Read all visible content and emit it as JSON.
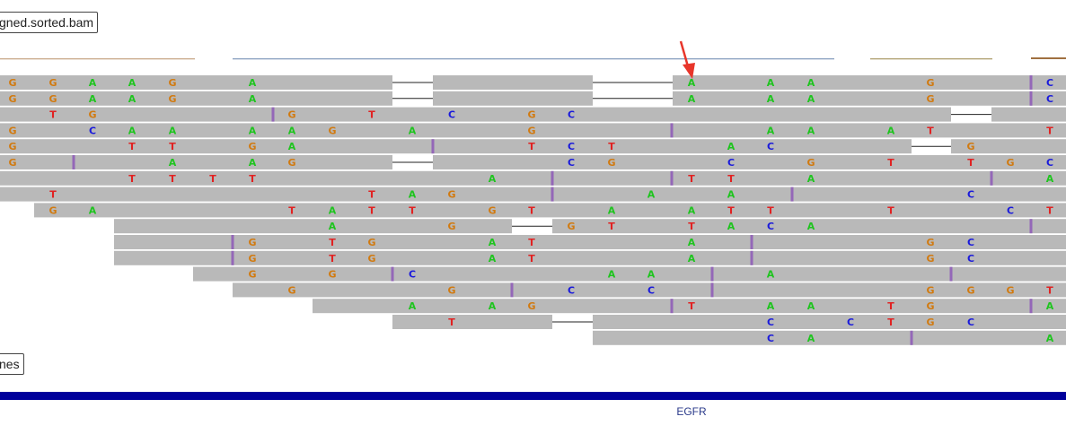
{
  "tracks": {
    "alignment_label": "gned.sorted.bam",
    "gene_track_label": "nes"
  },
  "gene": {
    "name": "EGFR"
  },
  "colors": {
    "read": "#b9b9b9",
    "insertion": "#9467b8",
    "A": "#1fc41f",
    "C": "#1a1adb",
    "G": "#d17a10",
    "T": "#e02222",
    "arrow": "#e8352a",
    "gene": "#00009b"
  },
  "reads": [
    {
      "segments": [
        [
          0,
          437
        ],
        [
          482,
          660
        ],
        [
          749,
          1187
        ]
      ],
      "bases": [
        [
          14,
          "G"
        ],
        [
          59,
          "G"
        ],
        [
          103,
          "A"
        ],
        [
          147,
          "A"
        ],
        [
          192,
          "G"
        ],
        [
          281,
          "A"
        ],
        [
          770,
          "A"
        ],
        [
          858,
          "A"
        ],
        [
          903,
          "A"
        ],
        [
          1036,
          "G"
        ],
        [
          1169,
          "C"
        ]
      ],
      "ins": [
        1148
      ]
    },
    {
      "segments": [
        [
          0,
          437
        ],
        [
          482,
          660
        ],
        [
          749,
          1187
        ]
      ],
      "bases": [
        [
          14,
          "G"
        ],
        [
          59,
          "G"
        ],
        [
          103,
          "A"
        ],
        [
          147,
          "A"
        ],
        [
          192,
          "G"
        ],
        [
          281,
          "A"
        ],
        [
          770,
          "A"
        ],
        [
          858,
          "A"
        ],
        [
          903,
          "A"
        ],
        [
          1036,
          "G"
        ],
        [
          1169,
          "C"
        ]
      ],
      "ins": [
        1148
      ]
    },
    {
      "segments": [
        [
          0,
          1059
        ],
        [
          1104,
          1187
        ]
      ],
      "bases": [
        [
          59,
          "T"
        ],
        [
          103,
          "G"
        ],
        [
          325,
          "G"
        ],
        [
          414,
          "T"
        ],
        [
          503,
          "C"
        ],
        [
          592,
          "G"
        ],
        [
          636,
          "C"
        ]
      ],
      "ins": [
        304
      ]
    },
    {
      "segments": [
        [
          0,
          1187
        ]
      ],
      "bases": [
        [
          14,
          "G"
        ],
        [
          103,
          "C"
        ],
        [
          147,
          "A"
        ],
        [
          192,
          "A"
        ],
        [
          281,
          "A"
        ],
        [
          325,
          "A"
        ],
        [
          370,
          "G"
        ],
        [
          459,
          "A"
        ],
        [
          592,
          "G"
        ],
        [
          858,
          "A"
        ],
        [
          903,
          "A"
        ],
        [
          992,
          "A"
        ],
        [
          1036,
          "T"
        ],
        [
          1169,
          "T"
        ]
      ],
      "ins": [
        748
      ]
    },
    {
      "segments": [
        [
          0,
          1015
        ],
        [
          1059,
          1187
        ]
      ],
      "bases": [
        [
          14,
          "G"
        ],
        [
          147,
          "T"
        ],
        [
          192,
          "T"
        ],
        [
          281,
          "G"
        ],
        [
          325,
          "A"
        ],
        [
          592,
          "T"
        ],
        [
          636,
          "C"
        ],
        [
          681,
          "T"
        ],
        [
          814,
          "A"
        ],
        [
          858,
          "C"
        ],
        [
          1081,
          "G"
        ]
      ],
      "ins": [
        482
      ]
    },
    {
      "segments": [
        [
          0,
          437
        ],
        [
          482,
          1187
        ]
      ],
      "bases": [
        [
          14,
          "G"
        ],
        [
          192,
          "A"
        ],
        [
          281,
          "A"
        ],
        [
          325,
          "G"
        ],
        [
          636,
          "C"
        ],
        [
          681,
          "G"
        ],
        [
          814,
          "C"
        ],
        [
          903,
          "G"
        ],
        [
          992,
          "T"
        ],
        [
          1081,
          "T"
        ],
        [
          1125,
          "G"
        ],
        [
          1169,
          "C"
        ]
      ],
      "ins": [
        82
      ]
    },
    {
      "segments": [
        [
          0,
          1187
        ]
      ],
      "bases": [
        [
          147,
          "T"
        ],
        [
          192,
          "T"
        ],
        [
          237,
          "T"
        ],
        [
          281,
          "T"
        ],
        [
          548,
          "A"
        ],
        [
          770,
          "T"
        ],
        [
          814,
          "T"
        ],
        [
          903,
          "A"
        ],
        [
          1169,
          "A"
        ]
      ],
      "ins": [
        615,
        748,
        1104
      ]
    },
    {
      "segments": [
        [
          0,
          1187
        ]
      ],
      "bases": [
        [
          59,
          "T"
        ],
        [
          414,
          "T"
        ],
        [
          459,
          "A"
        ],
        [
          503,
          "G"
        ],
        [
          725,
          "A"
        ],
        [
          814,
          "A"
        ],
        [
          1081,
          "C"
        ]
      ],
      "ins": [
        615,
        882
      ]
    },
    {
      "segments": [
        [
          38,
          1187
        ]
      ],
      "bases": [
        [
          59,
          "G"
        ],
        [
          103,
          "A"
        ],
        [
          325,
          "T"
        ],
        [
          370,
          "A"
        ],
        [
          414,
          "T"
        ],
        [
          459,
          "T"
        ],
        [
          548,
          "G"
        ],
        [
          592,
          "T"
        ],
        [
          681,
          "A"
        ],
        [
          770,
          "A"
        ],
        [
          814,
          "T"
        ],
        [
          858,
          "T"
        ],
        [
          992,
          "T"
        ],
        [
          1125,
          "C"
        ],
        [
          1169,
          "T"
        ]
      ],
      "ins": []
    },
    {
      "segments": [
        [
          127,
          570
        ],
        [
          615,
          1187
        ]
      ],
      "bases": [
        [
          370,
          "A"
        ],
        [
          503,
          "G"
        ],
        [
          636,
          "G"
        ],
        [
          681,
          "T"
        ],
        [
          770,
          "T"
        ],
        [
          814,
          "A"
        ],
        [
          858,
          "C"
        ],
        [
          903,
          "A"
        ]
      ],
      "ins": [
        1148
      ]
    },
    {
      "segments": [
        [
          127,
          1187
        ]
      ],
      "bases": [
        [
          281,
          "G"
        ],
        [
          370,
          "T"
        ],
        [
          414,
          "G"
        ],
        [
          548,
          "A"
        ],
        [
          592,
          "T"
        ],
        [
          770,
          "A"
        ],
        [
          1036,
          "G"
        ],
        [
          1081,
          "C"
        ]
      ],
      "ins": [
        259,
        837
      ]
    },
    {
      "segments": [
        [
          127,
          1187
        ]
      ],
      "bases": [
        [
          281,
          "G"
        ],
        [
          370,
          "T"
        ],
        [
          414,
          "G"
        ],
        [
          548,
          "A"
        ],
        [
          592,
          "T"
        ],
        [
          770,
          "A"
        ],
        [
          1036,
          "G"
        ],
        [
          1081,
          "C"
        ]
      ],
      "ins": [
        259,
        837
      ]
    },
    {
      "segments": [
        [
          215,
          1187
        ]
      ],
      "bases": [
        [
          281,
          "G"
        ],
        [
          370,
          "G"
        ],
        [
          459,
          "C"
        ],
        [
          681,
          "A"
        ],
        [
          725,
          "A"
        ],
        [
          858,
          "A"
        ]
      ],
      "ins": [
        437,
        793,
        1059
      ]
    },
    {
      "segments": [
        [
          259,
          1187
        ]
      ],
      "bases": [
        [
          325,
          "G"
        ],
        [
          503,
          "G"
        ],
        [
          636,
          "C"
        ],
        [
          725,
          "C"
        ],
        [
          1036,
          "G"
        ],
        [
          1081,
          "G"
        ],
        [
          1125,
          "G"
        ],
        [
          1169,
          "T"
        ]
      ],
      "ins": [
        570,
        793
      ]
    },
    {
      "segments": [
        [
          348,
          1187
        ]
      ],
      "bases": [
        [
          459,
          "A"
        ],
        [
          548,
          "A"
        ],
        [
          592,
          "G"
        ],
        [
          770,
          "T"
        ],
        [
          858,
          "A"
        ],
        [
          903,
          "A"
        ],
        [
          992,
          "T"
        ],
        [
          1036,
          "G"
        ],
        [
          1169,
          "A"
        ]
      ],
      "ins": [
        748,
        1148
      ]
    },
    {
      "segments": [
        [
          437,
          615
        ],
        [
          660,
          1187
        ]
      ],
      "bases": [
        [
          503,
          "T"
        ],
        [
          858,
          "C"
        ],
        [
          947,
          "C"
        ],
        [
          992,
          "T"
        ],
        [
          1036,
          "G"
        ],
        [
          1081,
          "C"
        ]
      ],
      "ins": []
    },
    {
      "segments": [
        [
          660,
          1187
        ]
      ],
      "bases": [
        [
          858,
          "C"
        ],
        [
          903,
          "A"
        ],
        [
          1169,
          "A"
        ]
      ],
      "ins": [
        1015
      ]
    }
  ]
}
